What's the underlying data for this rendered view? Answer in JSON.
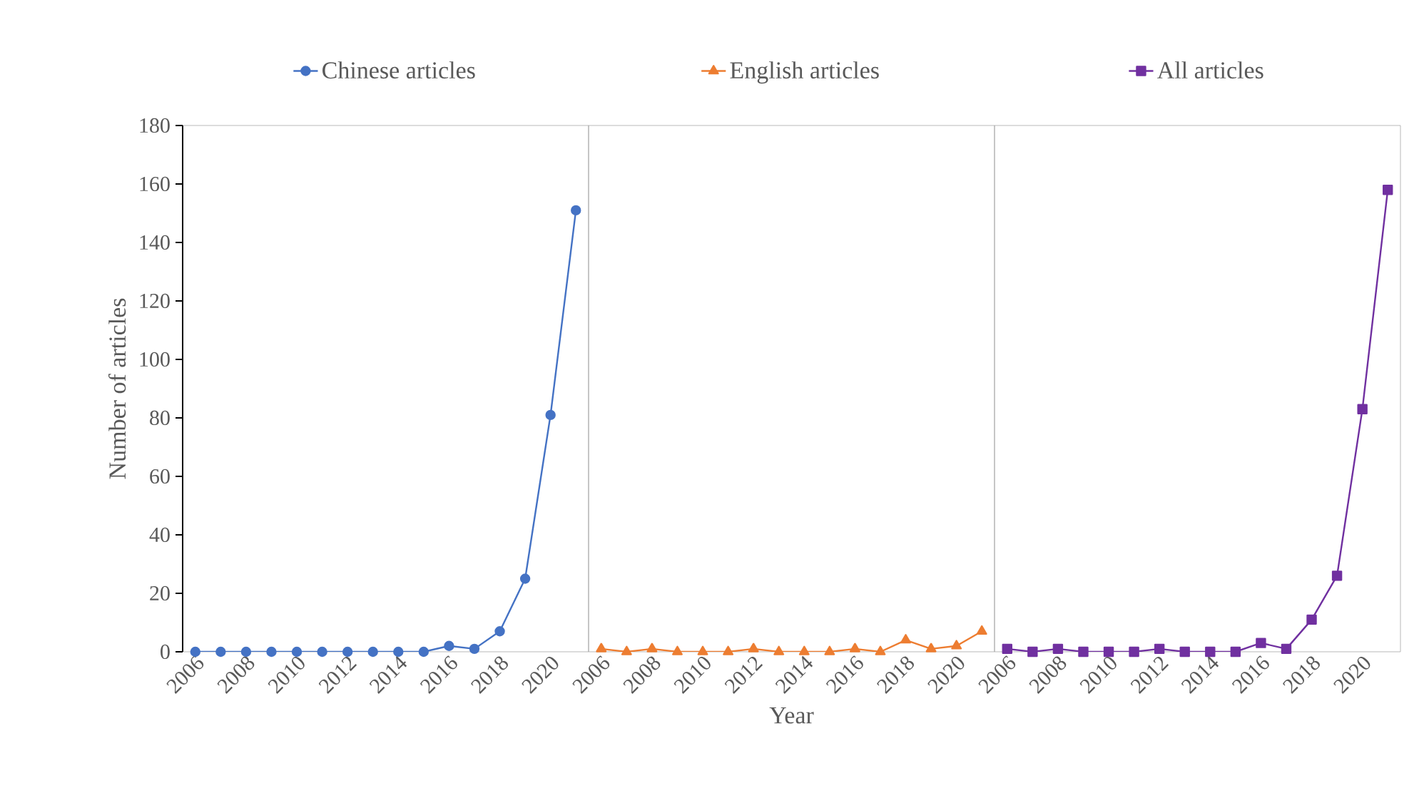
{
  "chart_data": [
    {
      "type": "line",
      "ylabel": "Number of articles",
      "categories": [
        "2006",
        null,
        "2008",
        null,
        "2010",
        null,
        "2012",
        null,
        "2014",
        null,
        "2016",
        null,
        "2018",
        null,
        "2020",
        null
      ],
      "ylim": [
        0,
        180
      ],
      "yticks": [
        0,
        20,
        40,
        60,
        80,
        100,
        120,
        140,
        160,
        180
      ],
      "marker": "circle",
      "legend": "top",
      "grid": false,
      "series": [
        {
          "name": "Chinese articles",
          "color": "#4472c4",
          "values": [
            0,
            0,
            0,
            0,
            0,
            0,
            0,
            0,
            0,
            0,
            2,
            1,
            7,
            25,
            81,
            151
          ]
        }
      ]
    },
    {
      "type": "line",
      "xlabel": "Year",
      "categories": [
        "2006",
        null,
        "2008",
        null,
        "2010",
        null,
        "2012",
        null,
        "2014",
        null,
        "2016",
        null,
        "2018",
        null,
        "2020",
        null
      ],
      "ylim": [
        0,
        180
      ],
      "tick_labels": "x",
      "marker": "triangle",
      "legend": "top",
      "grid": false,
      "series": [
        {
          "name": "English articles",
          "color": "#ed7d31",
          "values": [
            1,
            0,
            1,
            0,
            0,
            0,
            1,
            0,
            0,
            0,
            1,
            0,
            4,
            1,
            2,
            7
          ]
        }
      ]
    },
    {
      "type": "line",
      "categories": [
        "2006",
        null,
        "2008",
        null,
        "2010",
        null,
        "2012",
        null,
        "2014",
        null,
        "2016",
        null,
        "2018",
        null,
        "2020",
        null
      ],
      "ylim": [
        0,
        180
      ],
      "tick_labels": "x",
      "marker": "square",
      "legend": "top",
      "grid": false,
      "series": [
        {
          "name": "All articles",
          "color": "#7030a0",
          "values": [
            1,
            0,
            1,
            0,
            0,
            0,
            1,
            0,
            0,
            0,
            3,
            1,
            11,
            26,
            83,
            158
          ]
        }
      ]
    }
  ]
}
